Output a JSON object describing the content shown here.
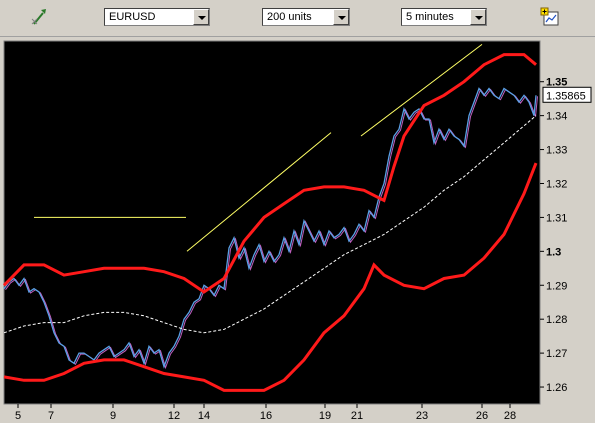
{
  "toolbar": {
    "icons": [
      "cursor-tool-icon",
      "add-indicator-icon"
    ],
    "symbol": {
      "value": "EURUSD"
    },
    "units": {
      "value": "200 units"
    },
    "interval": {
      "value": "5 minutes"
    }
  },
  "chart_data": {
    "type": "line",
    "price_label": "1.35865",
    "y_ticks": [
      "1.35",
      "1.34",
      "1.33",
      "1.32",
      "1.31",
      "1.3",
      "1.29",
      "1.28",
      "1.27",
      "1.26"
    ],
    "ylim": [
      1.255,
      1.362
    ],
    "x_ticks": [
      "5",
      "7",
      "9",
      "12",
      "14",
      "16",
      "19",
      "21",
      "23",
      "26",
      "28"
    ],
    "colors": {
      "background": "#000000",
      "price": "#5aa0e6",
      "price_alt": "#c060c0",
      "bands": "#ff1a1a",
      "middle": "#ffffff",
      "trend": "#ffff66"
    },
    "series": [
      {
        "type": "price",
        "x": [
          0,
          5,
          10,
          15,
          20,
          25,
          30,
          35,
          40,
          45,
          50,
          55,
          60,
          65,
          70,
          75,
          80,
          85,
          90,
          95,
          100,
          105,
          110,
          115,
          120,
          125,
          130,
          135,
          140,
          145,
          150,
          155,
          160,
          165,
          170,
          175,
          180,
          185,
          190,
          195,
          200,
          205,
          210,
          215,
          220,
          225,
          230,
          235,
          240,
          245,
          250,
          255,
          260,
          265,
          270,
          275,
          280,
          285,
          290,
          295,
          300,
          305,
          310,
          315,
          320,
          325,
          330,
          335,
          340,
          345,
          350,
          355,
          360,
          365,
          370,
          375,
          380,
          385,
          390,
          395,
          400,
          405,
          410,
          415,
          420,
          425,
          430,
          435,
          440,
          445,
          450,
          455,
          460,
          465,
          470,
          475,
          480,
          485,
          490,
          495,
          500,
          505,
          510,
          515,
          520,
          525,
          530,
          532
        ],
        "y": [
          1.289,
          1.291,
          1.292,
          1.29,
          1.292,
          1.288,
          1.289,
          1.288,
          1.285,
          1.281,
          1.276,
          1.273,
          1.272,
          1.268,
          1.267,
          1.27,
          1.27,
          1.269,
          1.268,
          1.27,
          1.271,
          1.272,
          1.269,
          1.27,
          1.271,
          1.273,
          1.269,
          1.271,
          1.267,
          1.272,
          1.27,
          1.271,
          1.266,
          1.27,
          1.272,
          1.275,
          1.28,
          1.282,
          1.285,
          1.286,
          1.29,
          1.289,
          1.287,
          1.29,
          1.289,
          1.301,
          1.304,
          1.298,
          1.301,
          1.295,
          1.299,
          1.302,
          1.297,
          1.3,
          1.297,
          1.299,
          1.304,
          1.3,
          1.306,
          1.302,
          1.309,
          1.306,
          1.303,
          1.306,
          1.302,
          1.306,
          1.304,
          1.305,
          1.307,
          1.303,
          1.305,
          1.308,
          1.306,
          1.312,
          1.31,
          1.316,
          1.32,
          1.328,
          1.334,
          1.336,
          1.342,
          1.339,
          1.341,
          1.342,
          1.339,
          1.339,
          1.332,
          1.336,
          1.333,
          1.336,
          1.334,
          1.333,
          1.331,
          1.34,
          1.344,
          1.348,
          1.346,
          1.348,
          1.346,
          1.345,
          1.348,
          1.347,
          1.346,
          1.344,
          1.346,
          1.344,
          1.34,
          1.346
        ]
      },
      {
        "type": "upper_band",
        "x": [
          0,
          20,
          40,
          60,
          80,
          100,
          120,
          140,
          160,
          180,
          200,
          220,
          240,
          260,
          280,
          300,
          320,
          340,
          360,
          380,
          390,
          400,
          420,
          440,
          460,
          480,
          500,
          520,
          532
        ],
        "y": [
          1.29,
          1.296,
          1.296,
          1.293,
          1.294,
          1.295,
          1.295,
          1.295,
          1.294,
          1.292,
          1.288,
          1.292,
          1.303,
          1.31,
          1.314,
          1.318,
          1.319,
          1.319,
          1.318,
          1.315,
          1.325,
          1.334,
          1.343,
          1.346,
          1.35,
          1.355,
          1.358,
          1.358,
          1.355
        ]
      },
      {
        "type": "middle_band",
        "x": [
          0,
          20,
          40,
          60,
          80,
          100,
          120,
          140,
          160,
          180,
          200,
          220,
          240,
          260,
          280,
          300,
          320,
          340,
          360,
          380,
          400,
          420,
          440,
          460,
          480,
          500,
          520,
          532
        ],
        "y": [
          1.276,
          1.278,
          1.279,
          1.279,
          1.281,
          1.282,
          1.282,
          1.281,
          1.279,
          1.277,
          1.276,
          1.277,
          1.28,
          1.283,
          1.287,
          1.291,
          1.295,
          1.299,
          1.302,
          1.305,
          1.309,
          1.313,
          1.318,
          1.322,
          1.327,
          1.332,
          1.337,
          1.34
        ]
      },
      {
        "type": "lower_band",
        "x": [
          0,
          20,
          40,
          60,
          80,
          100,
          120,
          140,
          160,
          180,
          200,
          220,
          240,
          260,
          280,
          300,
          320,
          340,
          360,
          370,
          380,
          400,
          420,
          440,
          460,
          480,
          500,
          520,
          532
        ],
        "y": [
          1.263,
          1.262,
          1.262,
          1.264,
          1.267,
          1.268,
          1.268,
          1.266,
          1.264,
          1.263,
          1.262,
          1.259,
          1.259,
          1.259,
          1.262,
          1.268,
          1.276,
          1.281,
          1.289,
          1.296,
          1.293,
          1.29,
          1.289,
          1.292,
          1.293,
          1.298,
          1.305,
          1.317,
          1.326
        ]
      },
      {
        "type": "trend",
        "x": [
          30,
          182
        ],
        "y": [
          1.31,
          1.31
        ]
      },
      {
        "type": "trend",
        "x": [
          183,
          327
        ],
        "y": [
          1.3,
          1.335
        ]
      },
      {
        "type": "trend",
        "x": [
          357,
          478
        ],
        "y": [
          1.334,
          1.361
        ]
      }
    ]
  }
}
